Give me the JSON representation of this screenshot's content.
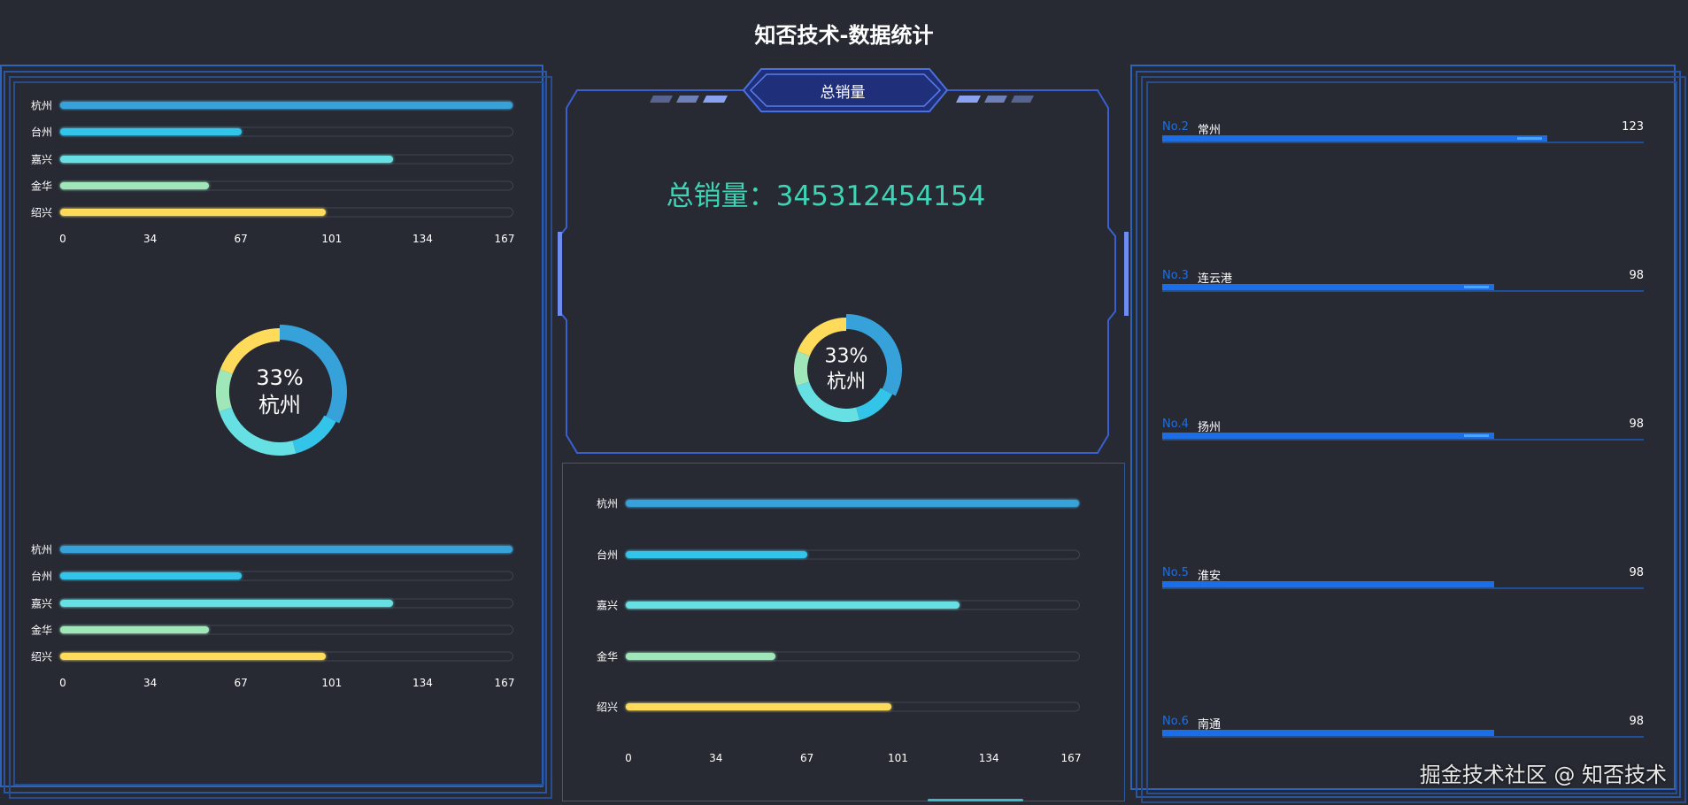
{
  "header": {
    "title": "知否技术-数据统计"
  },
  "center": {
    "panel_title": "总销量",
    "total_label": "总销量：",
    "total_value": "345312454154"
  },
  "colors": {
    "background": "#272a33",
    "frame": "#2d63b8",
    "accent_total": "#3fd4b5",
    "rank_blue": "#1a6ee8",
    "series": [
      "#37a2da",
      "#32c5e9",
      "#67e0e3",
      "#9fe6b8",
      "#ffdb5c"
    ]
  },
  "chart_data": [
    {
      "type": "bar",
      "orientation": "horizontal",
      "categories": [
        "杭州",
        "台州",
        "嘉兴",
        "金华",
        "绍兴"
      ],
      "values": [
        167,
        67,
        123,
        55,
        98
      ],
      "xlim": [
        0,
        167
      ],
      "xticks": [
        "0",
        "34",
        "67",
        "101",
        "134",
        "167"
      ],
      "grid": false
    },
    {
      "type": "pie",
      "donut": true,
      "categories": [
        "杭州",
        "台州",
        "嘉兴",
        "金华",
        "绍兴"
      ],
      "values": [
        167,
        67,
        123,
        55,
        98
      ],
      "highlight": "杭州",
      "center_value": "33%",
      "center_label": "杭州"
    },
    {
      "type": "bar",
      "orientation": "horizontal",
      "categories": [
        "杭州",
        "台州",
        "嘉兴",
        "金华",
        "绍兴"
      ],
      "values": [
        167,
        67,
        123,
        55,
        98
      ],
      "xlim": [
        0,
        167
      ],
      "xticks": [
        "0",
        "34",
        "67",
        "101",
        "134",
        "167"
      ],
      "grid": false
    },
    {
      "type": "pie",
      "donut": true,
      "categories": [
        "杭州",
        "台州",
        "嘉兴",
        "金华",
        "绍兴"
      ],
      "values": [
        167,
        67,
        123,
        55,
        98
      ],
      "highlight": "杭州",
      "center_value": "33%",
      "center_label": "杭州"
    },
    {
      "type": "bar",
      "orientation": "horizontal",
      "categories": [
        "杭州",
        "台州",
        "嘉兴",
        "金华",
        "绍兴"
      ],
      "values": [
        167,
        67,
        123,
        55,
        98
      ],
      "xlim": [
        0,
        167
      ],
      "xticks": [
        "0",
        "34",
        "67",
        "101",
        "134",
        "167"
      ],
      "grid": false
    }
  ],
  "ranking": [
    {
      "rank": "No.2",
      "name": "常州",
      "value": "123",
      "fill": 0.8
    },
    {
      "rank": "No.3",
      "name": "连云港",
      "value": "98",
      "fill": 0.69
    },
    {
      "rank": "No.4",
      "name": "扬州",
      "value": "98",
      "fill": 0.69
    },
    {
      "rank": "No.5",
      "name": "淮安",
      "value": "98",
      "fill": 0.69
    },
    {
      "rank": "No.6",
      "name": "南通",
      "value": "98",
      "fill": 0.69
    }
  ],
  "watermark": "掘金技术社区 @ 知否技术"
}
